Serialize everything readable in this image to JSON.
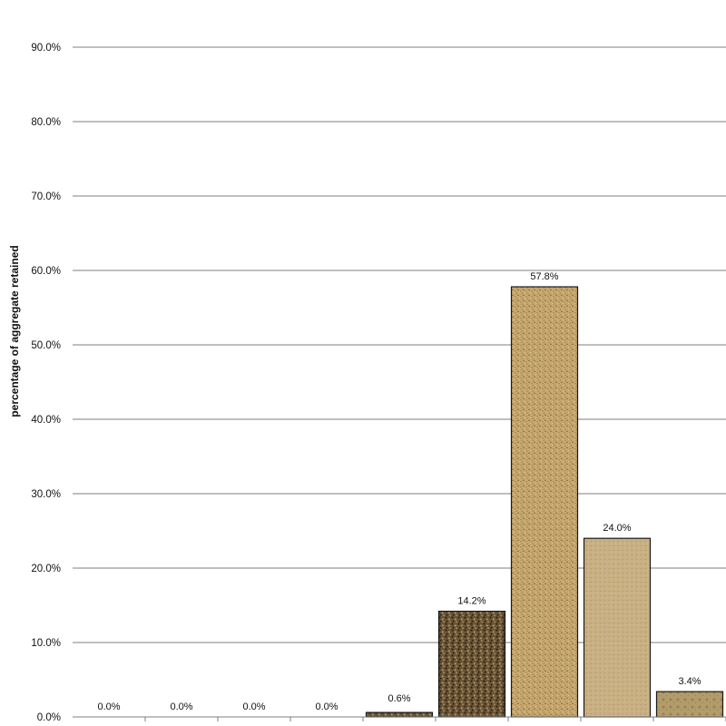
{
  "chart_data": {
    "type": "bar",
    "title": "",
    "xlabel": "",
    "ylabel": "percentage of aggregate retained",
    "ylim": [
      0,
      95
    ],
    "yticks": [
      0,
      10,
      20,
      30,
      40,
      50,
      60,
      70,
      80,
      90
    ],
    "ytick_labels": [
      "0.0%",
      "10.0%",
      "20.0%",
      "30.0%",
      "40.0%",
      "50.0%",
      "60.0%",
      "70.0%",
      "80.0%",
      "90.0%"
    ],
    "grid": true,
    "legend": "none",
    "categories": [
      "",
      "",
      "",
      "",
      "",
      "",
      "",
      "",
      "",
      ""
    ],
    "values": [
      0.0,
      0.0,
      0.0,
      0.0,
      0.0,
      0.6,
      14.2,
      57.8,
      24.0,
      3.4
    ],
    "data_labels": [
      "",
      "0.0%",
      "0.0%",
      "0.0%",
      "0.0%",
      "0.6%",
      "14.2%",
      "57.8%",
      "24.0%",
      "3.4%"
    ],
    "colors": {
      "bars": [
        "#c4a870",
        "#c4a870",
        "#c4a870",
        "#c4a870",
        "#c4a870",
        "#4a4232",
        "#5e4a30",
        "#c5a468",
        "#c8ae7c",
        "#b09a68"
      ],
      "speckle_dark": "#3d2d1c",
      "gridline": "#7f7f7f"
    }
  }
}
